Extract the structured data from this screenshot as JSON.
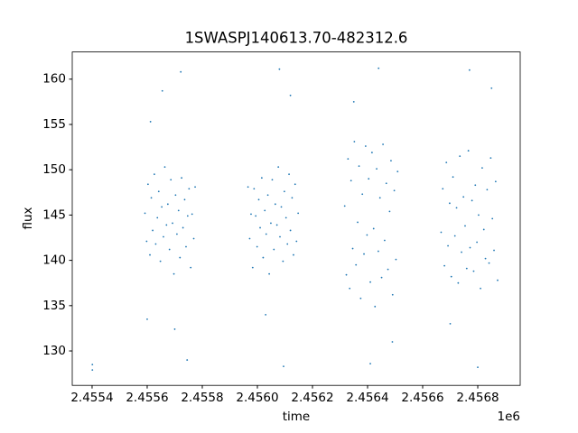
{
  "chart_data": {
    "type": "scatter",
    "title": "1SWASPJ140613.70-482312.6",
    "x_label": "time",
    "y_label": "flux",
    "x_offset_label": "1e6",
    "color": "#1f77b4",
    "xlim": [
      2455328,
      2456954
    ],
    "ylim": [
      126.2,
      163.0
    ],
    "xticks": [
      {
        "value": 2455400,
        "label": "2.4554"
      },
      {
        "value": 2455600,
        "label": "2.4556"
      },
      {
        "value": 2455800,
        "label": "2.4558"
      },
      {
        "value": 2456000,
        "label": "2.4560"
      },
      {
        "value": 2456200,
        "label": "2.4562"
      },
      {
        "value": 2456400,
        "label": "2.4564"
      },
      {
        "value": 2456600,
        "label": "2.4566"
      },
      {
        "value": 2456800,
        "label": "2.4568"
      }
    ],
    "yticks": [
      130,
      135,
      140,
      145,
      150,
      155,
      160
    ],
    "x": [
      2455592,
      2455598,
      2455603,
      2455610,
      2455615,
      2455620,
      2455626,
      2455631,
      2455637,
      2455642,
      2455648,
      2455653,
      2455659,
      2455664,
      2455670,
      2455675,
      2455681,
      2455686,
      2455692,
      2455697,
      2455703,
      2455708,
      2455714,
      2455719,
      2455725,
      2455730,
      2455736,
      2455741,
      2455747,
      2455752,
      2455758,
      2455763,
      2455769,
      2455774,
      2455612,
      2455655,
      2455700,
      2455722,
      2455745,
      2455600,
      2455966,
      2455972,
      2455977,
      2455983,
      2455988,
      2455994,
      2455999,
      2456005,
      2456010,
      2456016,
      2456021,
      2456027,
      2456032,
      2456038,
      2456043,
      2456049,
      2456054,
      2456060,
      2456065,
      2456071,
      2456076,
      2456082,
      2456087,
      2456093,
      2456098,
      2456104,
      2456109,
      2456115,
      2456120,
      2456126,
      2456131,
      2456137,
      2456142,
      2456148,
      2456080,
      2456095,
      2456120,
      2456030,
      2456317,
      2456323,
      2456329,
      2456335,
      2456340,
      2456346,
      2456352,
      2456358,
      2456364,
      2456369,
      2456375,
      2456381,
      2456387,
      2456393,
      2456398,
      2456404,
      2456410,
      2456416,
      2456422,
      2456427,
      2456433,
      2456439,
      2456445,
      2456451,
      2456456,
      2456462,
      2456468,
      2456474,
      2456480,
      2456485,
      2456491,
      2456497,
      2456503,
      2456509,
      2456440,
      2456410,
      2456350,
      2456490,
      2456667,
      2456673,
      2456679,
      2456686,
      2456692,
      2456698,
      2456704,
      2456710,
      2456717,
      2456723,
      2456729,
      2456735,
      2456741,
      2456748,
      2456754,
      2456760,
      2456766,
      2456772,
      2456779,
      2456785,
      2456791,
      2456797,
      2456803,
      2456810,
      2456816,
      2456822,
      2456828,
      2456834,
      2456841,
      2456847,
      2456853,
      2456859,
      2456865,
      2456872,
      2456770,
      2456800,
      2456700,
      2456850,
      2455401,
      2455401
    ],
    "values": [
      145.2,
      142.1,
      148.4,
      140.6,
      146.9,
      143.3,
      149.5,
      141.8,
      144.7,
      147.6,
      139.9,
      145.9,
      142.6,
      150.3,
      143.9,
      146.2,
      141.2,
      148.9,
      144.1,
      138.5,
      147.2,
      142.9,
      145.5,
      140.3,
      149.1,
      143.6,
      146.7,
      141.5,
      144.9,
      147.9,
      139.2,
      145.1,
      142.4,
      148.1,
      155.3,
      158.7,
      132.4,
      160.8,
      129.0,
      133.5,
      148.1,
      142.4,
      145.1,
      139.2,
      147.9,
      144.9,
      141.5,
      146.7,
      143.6,
      149.1,
      140.3,
      145.5,
      142.9,
      147.2,
      138.5,
      144.1,
      148.9,
      141.2,
      146.2,
      143.9,
      150.3,
      142.6,
      145.9,
      139.9,
      147.6,
      144.7,
      141.8,
      149.5,
      143.3,
      146.9,
      140.6,
      148.4,
      142.1,
      145.2,
      161.1,
      128.3,
      158.2,
      134.0,
      146.0,
      138.4,
      151.2,
      136.9,
      148.8,
      141.3,
      153.1,
      139.5,
      144.2,
      150.4,
      135.8,
      147.3,
      140.7,
      152.6,
      142.8,
      149.0,
      137.6,
      151.9,
      143.5,
      134.9,
      150.1,
      141.0,
      146.9,
      138.1,
      152.8,
      142.2,
      148.5,
      139.0,
      145.4,
      151.0,
      136.2,
      147.7,
      140.1,
      149.8,
      161.2,
      128.6,
      157.5,
      131.0,
      143.1,
      147.9,
      139.4,
      150.8,
      141.6,
      146.3,
      138.2,
      149.2,
      142.7,
      145.8,
      137.5,
      151.5,
      140.9,
      147.0,
      143.8,
      139.1,
      152.1,
      141.4,
      146.6,
      138.8,
      148.3,
      142.0,
      145.0,
      136.9,
      150.2,
      143.4,
      140.2,
      147.8,
      139.7,
      151.3,
      144.6,
      141.1,
      148.7,
      137.8,
      161.0,
      128.2,
      133.0,
      159.0,
      128.5,
      127.9
    ]
  }
}
